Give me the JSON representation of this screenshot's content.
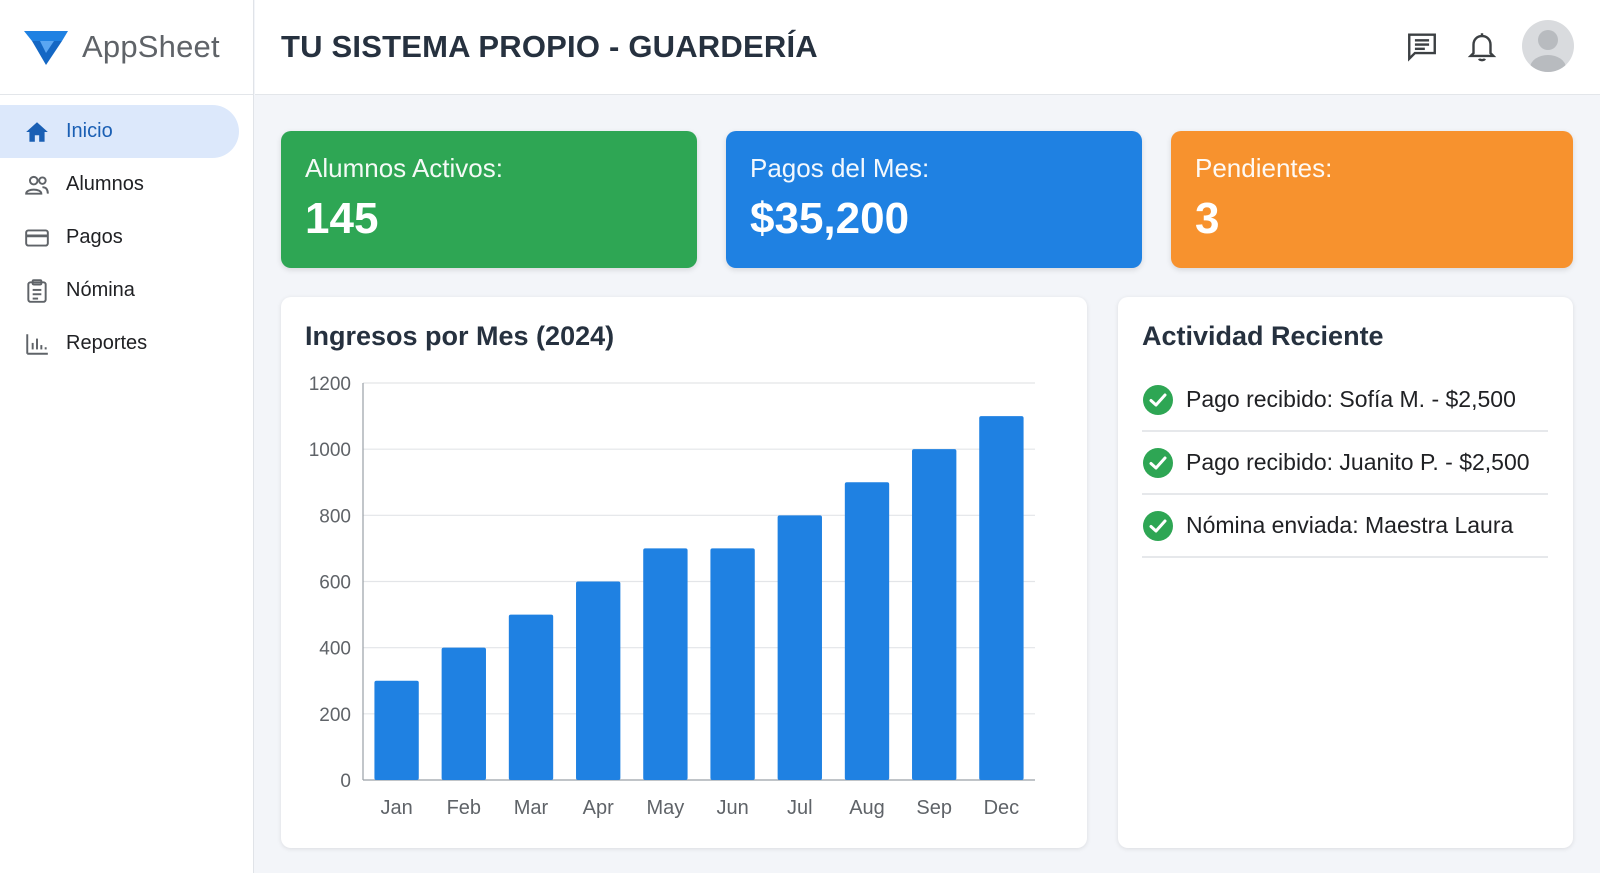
{
  "brand": {
    "name": "AppSheet",
    "logo_icon": "appsheet-logo-icon",
    "logo_color": "#1f81e2"
  },
  "header": {
    "title": "TU SISTEMA PROPIO - GUARDERÍA",
    "icons": [
      "chat-icon",
      "bell-icon",
      "user-avatar-icon"
    ]
  },
  "sidebar": {
    "items": [
      {
        "label": "Inicio",
        "icon": "home-icon",
        "active": true
      },
      {
        "label": "Alumnos",
        "icon": "people-icon",
        "active": false
      },
      {
        "label": "Pagos",
        "icon": "credit-card-icon",
        "active": false
      },
      {
        "label": "Nómina",
        "icon": "clipboard-icon",
        "active": false
      },
      {
        "label": "Reportes",
        "icon": "bar-chart-icon",
        "active": false
      }
    ]
  },
  "stats": [
    {
      "label": "Alumnos Activos:",
      "value": "145",
      "color": "#2ea654"
    },
    {
      "label": "Pagos del Mes:",
      "value": "$35,200",
      "color": "#1f81e2"
    },
    {
      "label": "Pendientes:",
      "value": "3",
      "color": "#f7922e"
    }
  ],
  "chart_data": {
    "type": "bar",
    "title": "Ingresos por Mes (2024)",
    "categories": [
      "Jan",
      "Feb",
      "Mar",
      "Apr",
      "May",
      "Jun",
      "Jul",
      "Aug",
      "Sep",
      "Dec"
    ],
    "values": [
      300,
      400,
      500,
      600,
      700,
      700,
      800,
      900,
      1000,
      1100
    ],
    "yticks": [
      0,
      200,
      400,
      600,
      800,
      1000,
      1200
    ],
    "ylim": [
      0,
      1200
    ],
    "xlabel": "",
    "ylabel": "",
    "grid": true,
    "bar_color": "#1f81e2"
  },
  "activity": {
    "title": "Actividad Reciente",
    "items": [
      {
        "text": "Pago recibido: Sofía M. - $2,500",
        "icon": "check-circle-icon"
      },
      {
        "text": "Pago recibido: Juanito P. - $2,500",
        "icon": "check-circle-icon"
      },
      {
        "text": "Nómina enviada: Maestra Laura",
        "icon": "check-circle-icon"
      }
    ],
    "check_color": "#2ea654"
  }
}
